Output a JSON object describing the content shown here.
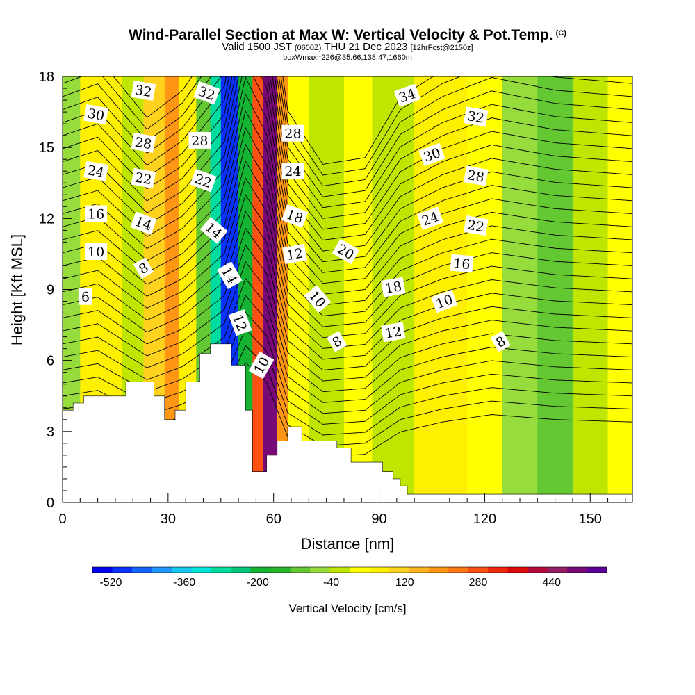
{
  "header": {
    "title": "Wind-Parallel Section at Max W: Vertical Velocity & Pot.Temp.",
    "copyright": "(C)",
    "subtitle_pre": "Valid 1500 JST",
    "subtitle_utc": "(0600Z)",
    "subtitle_date": "THU 21 Dec 2023",
    "subtitle_fcst": "[12hrFcst@2150z]",
    "subtitle_box": "boxWmax=226@35.66,138.47,1660m"
  },
  "chart_data": {
    "type": "heatmap",
    "title": "Wind-Parallel Section at Max W: Vertical Velocity & Pot.Temp.",
    "xlabel": "Distance [nm]",
    "ylabel": "Height [Kft MSL]",
    "xlim": [
      0,
      162
    ],
    "ylim": [
      0,
      18
    ],
    "x_ticks": [
      0,
      30,
      60,
      90,
      120,
      150
    ],
    "y_ticks": [
      0,
      3,
      6,
      9,
      12,
      15,
      18
    ],
    "colorbar": {
      "title": "Vertical Velocity [cm/s]",
      "tick_labels": [
        "-520",
        "-360",
        "-200",
        "-40",
        "120",
        "280",
        "440"
      ],
      "colors": [
        "#0000ee",
        "#0a32ff",
        "#1464ff",
        "#1e96ff",
        "#14c8f0",
        "#00e6dc",
        "#00dca0",
        "#00c878",
        "#14b432",
        "#28b428",
        "#64c832",
        "#96dc3c",
        "#bee600",
        "#ffff00",
        "#fff000",
        "#ffd21e",
        "#ffb41e",
        "#ff9614",
        "#ff7814",
        "#ff5014",
        "#f0280a",
        "#dc0a0a",
        "#b40a3c",
        "#961e64",
        "#780a78",
        "#5a0096"
      ]
    },
    "w_field_bands": [
      {
        "x": [
          0,
          5
        ],
        "w": -60
      },
      {
        "x": [
          5,
          17
        ],
        "w": 60
      },
      {
        "x": [
          17,
          23
        ],
        "w": -40
      },
      {
        "x": [
          23,
          29
        ],
        "w": 120
      },
      {
        "x": [
          29,
          33
        ],
        "w": 200
      },
      {
        "x": [
          33,
          38
        ],
        "w": 80
      },
      {
        "x": [
          38,
          42
        ],
        "w": -120
      },
      {
        "x": [
          42,
          45
        ],
        "w": -300
      },
      {
        "x": [
          45,
          50
        ],
        "w": -500
      },
      {
        "x": [
          50,
          54
        ],
        "w": -200
      },
      {
        "x": [
          54,
          57
        ],
        "w": 280
      },
      {
        "x": [
          57,
          61
        ],
        "w": 500
      },
      {
        "x": [
          61,
          64
        ],
        "w": 200
      },
      {
        "x": [
          64,
          70
        ],
        "w": 40
      },
      {
        "x": [
          70,
          80
        ],
        "w": -40
      },
      {
        "x": [
          80,
          88
        ],
        "w": 20
      },
      {
        "x": [
          88,
          100
        ],
        "w": -20
      },
      {
        "x": [
          100,
          115
        ],
        "w": 80
      },
      {
        "x": [
          115,
          125
        ],
        "w": 20
      },
      {
        "x": [
          125,
          135
        ],
        "w": -60
      },
      {
        "x": [
          135,
          145
        ],
        "w": -100
      },
      {
        "x": [
          145,
          155
        ],
        "w": -40
      },
      {
        "x": [
          155,
          162
        ],
        "w": 40
      }
    ],
    "terrain": {
      "x": [
        0,
        3,
        3,
        6,
        6,
        18,
        18,
        26,
        26,
        29,
        29,
        32,
        32,
        35,
        35,
        39,
        39,
        42,
        42,
        48,
        48,
        52,
        52,
        54,
        54,
        58,
        58,
        61,
        61,
        64,
        64,
        68,
        68,
        78,
        78,
        82,
        82,
        91,
        91,
        94,
        94,
        96,
        96,
        98,
        98,
        100,
        100,
        103,
        103,
        135,
        135,
        162
      ],
      "y": [
        3.9,
        3.9,
        4.2,
        4.2,
        4.5,
        4.5,
        5.1,
        5.1,
        4.5,
        4.5,
        3.5,
        3.5,
        3.9,
        3.9,
        5.1,
        5.1,
        6.3,
        6.3,
        6.7,
        6.7,
        5.8,
        5.8,
        3.9,
        3.9,
        1.3,
        1.3,
        2.0,
        2.0,
        2.6,
        2.6,
        3.2,
        3.2,
        2.6,
        2.6,
        2.3,
        2.3,
        1.7,
        1.7,
        1.3,
        1.3,
        1.0,
        1.0,
        0.7,
        0.7,
        0.35,
        0.35,
        0.35,
        0.35,
        0.35,
        0.35,
        0.35,
        0.35
      ]
    },
    "theta_contours": {
      "levels_labeled": [
        6,
        8,
        10,
        12,
        14,
        16,
        18,
        20,
        22,
        24,
        28,
        30,
        32,
        34
      ],
      "labels": [
        {
          "text": "32",
          "x": 23,
          "y": 17.4,
          "angle": 10
        },
        {
          "text": "30",
          "x": 9.5,
          "y": 16.4,
          "angle": 10
        },
        {
          "text": "28",
          "x": 23,
          "y": 15.2,
          "angle": 10
        },
        {
          "text": "24",
          "x": 9.5,
          "y": 14.0,
          "angle": 10
        },
        {
          "text": "22",
          "x": 23,
          "y": 13.7,
          "angle": 10
        },
        {
          "text": "16",
          "x": 9.5,
          "y": 12.2,
          "angle": 0
        },
        {
          "text": "14",
          "x": 23,
          "y": 11.8,
          "angle": 20
        },
        {
          "text": "10",
          "x": 9.5,
          "y": 10.6,
          "angle": 0
        },
        {
          "text": "8",
          "x": 23,
          "y": 9.9,
          "angle": -30
        },
        {
          "text": "6",
          "x": 6.5,
          "y": 8.7,
          "angle": 0
        },
        {
          "text": "32",
          "x": 41,
          "y": 17.3,
          "angle": 20
        },
        {
          "text": "28",
          "x": 39,
          "y": 15.3,
          "angle": 0
        },
        {
          "text": "22",
          "x": 40,
          "y": 13.6,
          "angle": 20
        },
        {
          "text": "14",
          "x": 43,
          "y": 11.5,
          "angle": 40
        },
        {
          "text": "14",
          "x": 47.5,
          "y": 9.6,
          "angle": 60
        },
        {
          "text": "12",
          "x": 50.5,
          "y": 7.6,
          "angle": 70
        },
        {
          "text": "10",
          "x": 56.5,
          "y": 5.8,
          "angle": -60
        },
        {
          "text": "28",
          "x": 65.5,
          "y": 15.6,
          "angle": 0
        },
        {
          "text": "24",
          "x": 65.5,
          "y": 14.0,
          "angle": 0
        },
        {
          "text": "18",
          "x": 66,
          "y": 12.1,
          "angle": 20
        },
        {
          "text": "12",
          "x": 66,
          "y": 10.5,
          "angle": -10
        },
        {
          "text": "20",
          "x": 80.5,
          "y": 10.6,
          "angle": 30
        },
        {
          "text": "10",
          "x": 72.5,
          "y": 8.6,
          "angle": 50
        },
        {
          "text": "8",
          "x": 78,
          "y": 6.8,
          "angle": -30
        },
        {
          "text": "34",
          "x": 98,
          "y": 17.2,
          "angle": -20
        },
        {
          "text": "32",
          "x": 117.5,
          "y": 16.3,
          "angle": 10
        },
        {
          "text": "30",
          "x": 105,
          "y": 14.7,
          "angle": -20
        },
        {
          "text": "28",
          "x": 117.5,
          "y": 13.8,
          "angle": 10
        },
        {
          "text": "24",
          "x": 104.5,
          "y": 12.0,
          "angle": -20
        },
        {
          "text": "22",
          "x": 117.5,
          "y": 11.7,
          "angle": 10
        },
        {
          "text": "18",
          "x": 94,
          "y": 9.1,
          "angle": -10
        },
        {
          "text": "16",
          "x": 113.5,
          "y": 10.1,
          "angle": 5
        },
        {
          "text": "12",
          "x": 94,
          "y": 7.2,
          "angle": -10
        },
        {
          "text": "10",
          "x": 108.5,
          "y": 8.5,
          "angle": -20
        },
        {
          "text": "8",
          "x": 124.5,
          "y": 6.8,
          "angle": -30
        }
      ]
    }
  }
}
